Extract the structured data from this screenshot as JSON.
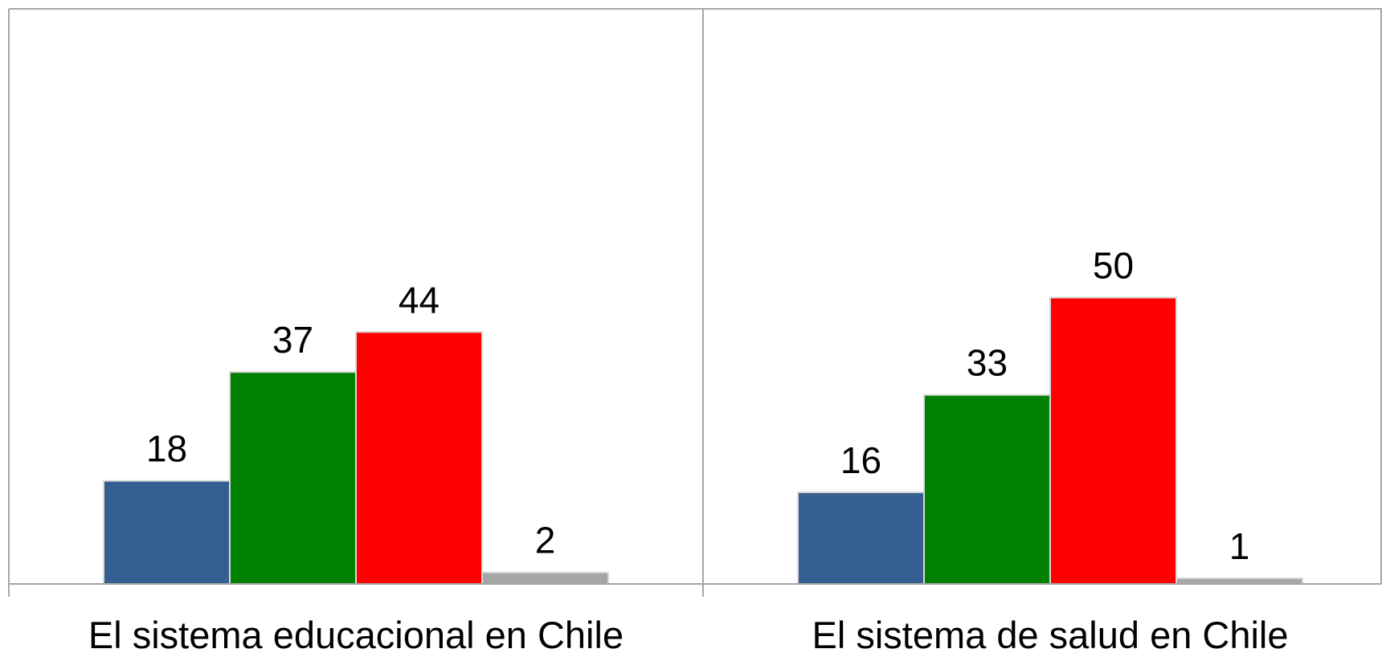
{
  "chart_data": {
    "type": "bar",
    "categories": [
      "El sistema educacional en Chile",
      "El sistema de salud en Chile"
    ],
    "series": [
      {
        "color": "#365F91",
        "values": [
          18,
          16
        ]
      },
      {
        "color": "#008000",
        "values": [
          37,
          33
        ]
      },
      {
        "color": "#FF0000",
        "values": [
          44,
          50
        ]
      },
      {
        "color": "#A6A6A6",
        "values": [
          2,
          1
        ]
      }
    ],
    "ylim": [
      0,
      100
    ],
    "grid": false,
    "data_labels": true,
    "title": "",
    "xlabel": "",
    "ylabel": ""
  }
}
